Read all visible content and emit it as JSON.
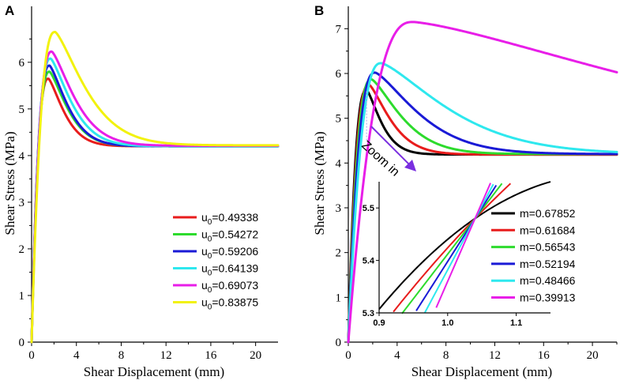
{
  "chart_data": [
    {
      "panel": "A",
      "type": "line",
      "xlabel": "Shear Displacement (mm)",
      "ylabel": "Shear Stress (MPa)",
      "xlim": [
        0,
        22
      ],
      "ylim": [
        0,
        7.2
      ],
      "xticks": [
        0,
        4,
        8,
        12,
        16,
        20
      ],
      "yticks": [
        0,
        1,
        2,
        3,
        4,
        5,
        6
      ],
      "legend_position": "lower-right",
      "series": [
        {
          "name": "u0=0.49338",
          "label_base": "u",
          "label_sub": "0",
          "label_rest": "=0.49338",
          "color": "#e81c1c",
          "peak_x": 1.5,
          "peak_y": 5.65,
          "residual": 4.2
        },
        {
          "name": "u0=0.54272",
          "label_base": "u",
          "label_sub": "0",
          "label_rest": "=0.54272",
          "color": "#2ddb2d",
          "peak_x": 1.6,
          "peak_y": 5.8,
          "residual": 4.2
        },
        {
          "name": "u0=0.59206",
          "label_base": "u",
          "label_sub": "0",
          "label_rest": "=0.59206",
          "color": "#1a1ad6",
          "peak_x": 1.6,
          "peak_y": 5.93,
          "residual": 4.2
        },
        {
          "name": "u0=0.64139",
          "label_base": "u",
          "label_sub": "0",
          "label_rest": "=0.64139",
          "color": "#2ee8ee",
          "peak_x": 1.7,
          "peak_y": 6.08,
          "residual": 4.2
        },
        {
          "name": "u0=0.69073",
          "label_base": "u",
          "label_sub": "0",
          "label_rest": "=0.69073",
          "color": "#e81ee8",
          "peak_x": 1.8,
          "peak_y": 6.23,
          "residual": 4.21
        },
        {
          "name": "u0=0.83875",
          "label_base": "u",
          "label_sub": "0",
          "label_rest": "=0.83875",
          "color": "#f2f20e",
          "peak_x": 2.1,
          "peak_y": 6.65,
          "residual": 4.22
        }
      ]
    },
    {
      "panel": "B",
      "type": "line",
      "xlabel": "Shear Displacement (mm)",
      "ylabel": "Shear Stress (MPa)",
      "xlim": [
        0,
        22
      ],
      "ylim": [
        0,
        7.5
      ],
      "xticks": [
        0,
        4,
        8,
        12,
        16,
        20
      ],
      "yticks": [
        0,
        1,
        2,
        3,
        4,
        5,
        6,
        7
      ],
      "annotation": "Zoom in",
      "legend_position": "lower-right",
      "series": [
        {
          "name": "m=0.67852",
          "color": "#000000",
          "peak_x": 1.5,
          "peak_y": 5.63,
          "residual": 4.19,
          "decay": 2.2
        },
        {
          "name": "m=0.61684",
          "color": "#e81c1c",
          "peak_x": 1.7,
          "peak_y": 5.75,
          "residual": 4.19,
          "decay": 3.2
        },
        {
          "name": "m=0.56543",
          "color": "#2ddb2d",
          "peak_x": 1.9,
          "peak_y": 5.87,
          "residual": 4.2,
          "decay": 4.5
        },
        {
          "name": "m=0.52194",
          "color": "#1a1ad6",
          "peak_x": 2.2,
          "peak_y": 6.02,
          "residual": 4.2,
          "decay": 6.5
        },
        {
          "name": "m=0.48466",
          "color": "#2ee8ee",
          "peak_x": 2.7,
          "peak_y": 6.23,
          "residual": 4.2,
          "decay": 10.0
        },
        {
          "name": "m=0.39913",
          "color": "#e81ee8",
          "peak_x": 5.3,
          "peak_y": 7.15,
          "residual": 4.2,
          "decay": 40.0
        }
      ],
      "inset": {
        "xlim": [
          0.9,
          1.15
        ],
        "ylim": [
          5.3,
          5.55
        ],
        "xticks": [
          "0.9",
          "1.0",
          "1.1"
        ],
        "yticks": [
          "5.3",
          "5.4",
          "5.5"
        ],
        "crossing_x": 1.04,
        "crossing_y": 5.48
      }
    }
  ]
}
